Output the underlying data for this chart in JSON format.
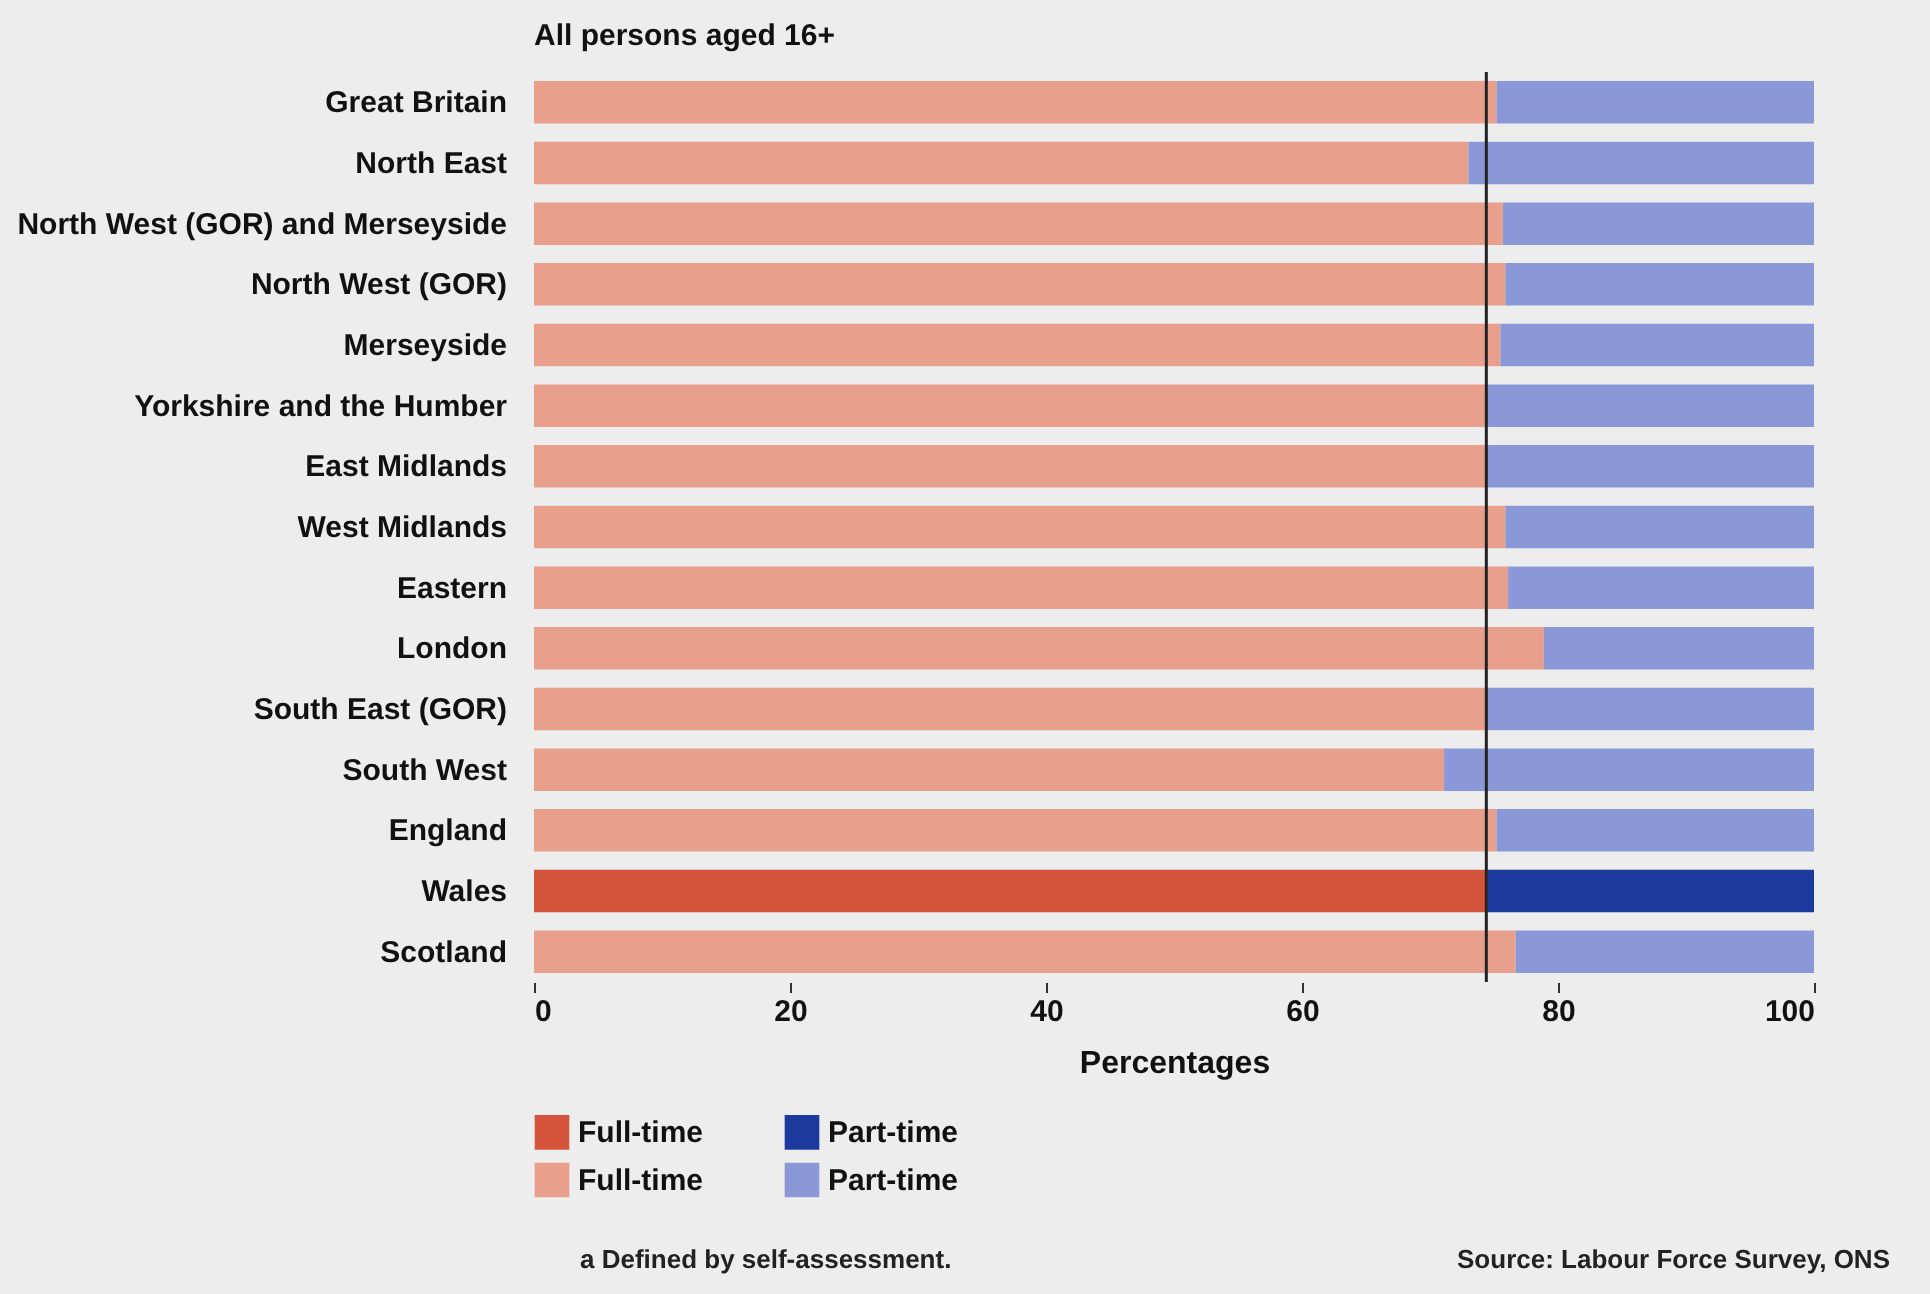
{
  "chart_data": {
    "type": "bar",
    "orientation": "horizontal",
    "stacked": true,
    "title": "All persons aged 16+",
    "xlabel": "Percentages",
    "categories": [
      "Great Britain",
      "North East",
      "North West (GOR) and Merseyside",
      "North West (GOR)",
      "Merseyside",
      "Yorkshire and the Humber",
      "East Midlands",
      "West Midlands",
      "Eastern",
      "London",
      "South East (GOR)",
      "South West",
      "England",
      "Wales",
      "Scotland"
    ],
    "series": [
      {
        "name": "Full-time",
        "color": "#d4553c",
        "values": [
          null,
          null,
          null,
          null,
          null,
          null,
          null,
          null,
          null,
          null,
          null,
          null,
          null,
          74.5,
          null
        ]
      },
      {
        "name": "Part-time",
        "color": "#1c3a9e",
        "values": [
          null,
          null,
          null,
          null,
          null,
          null,
          null,
          null,
          null,
          null,
          null,
          null,
          null,
          25.5,
          null
        ]
      },
      {
        "name": "Full-time",
        "color": "#e8a08c",
        "values": [
          75.2,
          73.0,
          75.7,
          75.9,
          75.5,
          74.4,
          74.3,
          75.9,
          76.1,
          78.9,
          74.3,
          71.1,
          75.2,
          null,
          76.7
        ]
      },
      {
        "name": "Part-time",
        "color": "#8a98d8",
        "values": [
          24.8,
          27.0,
          24.3,
          24.1,
          24.5,
          25.6,
          25.7,
          24.1,
          23.9,
          21.1,
          25.7,
          28.9,
          24.8,
          null,
          23.3
        ]
      }
    ],
    "xlim": [
      0,
      100
    ],
    "xticks": [
      0,
      20,
      40,
      60,
      80,
      100
    ],
    "ref_lines": [
      {
        "axis": "x",
        "value": 74.4,
        "color": "#222222"
      }
    ],
    "legend": "bottom left",
    "grid": false,
    "annotations": [
      "a Defined by self-assessment.",
      "Source: Labour Force Survey, ONS"
    ]
  }
}
